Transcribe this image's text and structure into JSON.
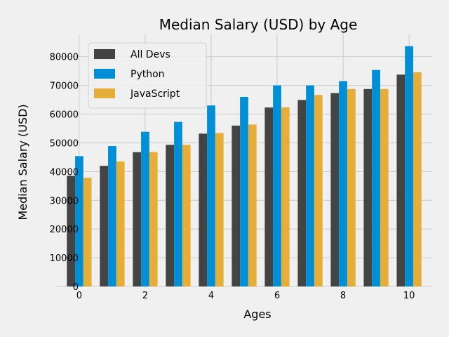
{
  "chart_data": {
    "type": "bar",
    "title": "Median Salary (USD) by Age",
    "xlabel": "Ages",
    "ylabel": "Median Salary (USD)",
    "x": [
      0,
      1,
      2,
      3,
      4,
      5,
      6,
      7,
      8,
      9,
      10
    ],
    "xticks": [
      0,
      2,
      4,
      6,
      8,
      10
    ],
    "yticks": [
      0,
      10000,
      20000,
      30000,
      40000,
      50000,
      60000,
      70000,
      80000
    ],
    "xlim": [
      -0.7,
      10.7
    ],
    "ylim": [
      0,
      88000
    ],
    "grid": true,
    "legend_position": "top-left",
    "series": [
      {
        "name": "All Devs",
        "color": "#444444",
        "values": [
          38496,
          42000,
          46752,
          49320,
          53200,
          56000,
          62316,
          64928,
          67317,
          68748,
          73752
        ]
      },
      {
        "name": "Python",
        "color": "#008fd5",
        "values": [
          45372,
          48876,
          53850,
          57287,
          63016,
          65998,
          70003,
          70000,
          71496,
          75370,
          83640
        ]
      },
      {
        "name": "JavaScript",
        "color": "#e5ae38",
        "values": [
          37810,
          43515,
          46823,
          49293,
          53437,
          56373,
          62375,
          66674,
          68745,
          68746,
          74583
        ]
      }
    ]
  }
}
